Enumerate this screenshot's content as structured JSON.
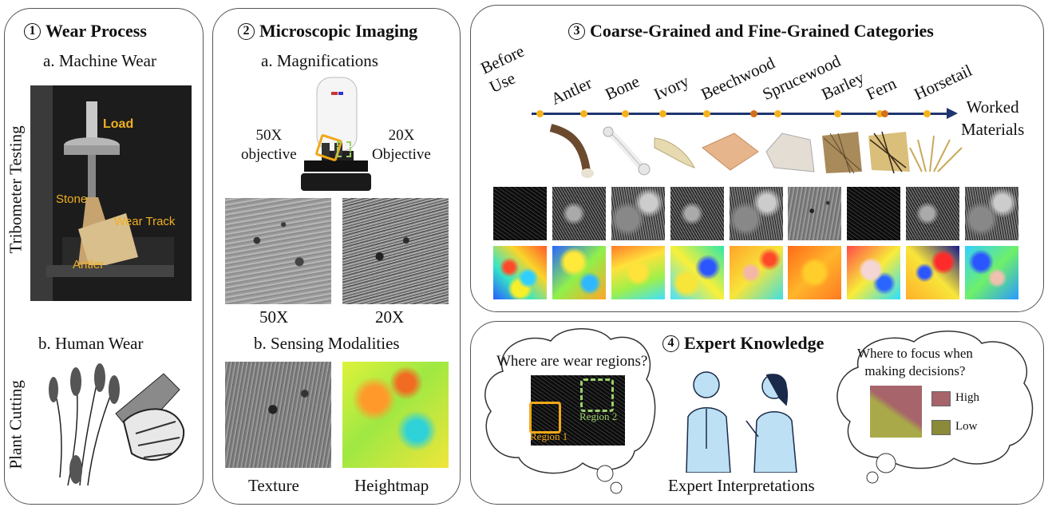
{
  "panel1": {
    "number": "1",
    "title": "Wear Process",
    "sub_a": "a. Machine Wear",
    "sub_b": "b. Human Wear",
    "side_label_a": "Tribometer Testing",
    "side_label_b": "Plant Cutting",
    "photo_labels": {
      "load": "Load",
      "stone": "Stone",
      "wear_track": "Wear Track",
      "antler": "Antler"
    }
  },
  "panel2": {
    "number": "2",
    "title": "Microscopic Imaging",
    "sub_a": "a. Magnifications",
    "obj_left": "50X\nobjective",
    "obj_right": "20X\nObjective",
    "img_left_label": "50X",
    "img_right_label": "20X",
    "sub_b": "b. Sensing  Modalities",
    "texture_label": "Texture",
    "heightmap_label": "Heightmap"
  },
  "panel3": {
    "number": "3",
    "title": "Coarse-Grained and Fine-Grained Categories",
    "timeline_labels": [
      "Before\nUse",
      "Antler",
      "Bone",
      "Ivory",
      "Beechwood",
      "Sprucewood",
      "Barley",
      "Fern",
      "Horsetail"
    ],
    "axis_label": "Worked\nMaterials",
    "colors": {
      "dot": "#f6b21a",
      "dot_alt": "#d2701e",
      "arrow": "#1f3570"
    }
  },
  "panel4": {
    "number": "4",
    "title": "Expert Knowledge",
    "left_question": "Where are wear regions?",
    "region1": "Region 1",
    "region2": "Region 2",
    "right_question": "Where to focus when\nmaking  decisions?",
    "legend_high": "High",
    "legend_low": "Low",
    "caption": "Expert Interpretations",
    "colors": {
      "high": "#a7646b",
      "low": "#8a8a3a",
      "region1": "#f0a818",
      "region2": "#9ccf6a"
    }
  }
}
